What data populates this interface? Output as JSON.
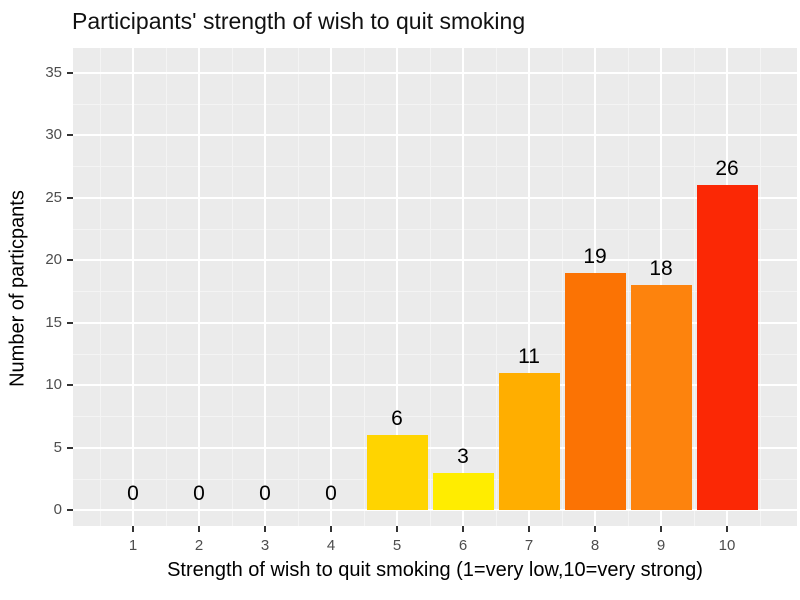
{
  "title": "Participants' strength of wish to quit smoking",
  "axes": {
    "x_title": "Strength of wish to quit smoking (1=very low,10=very strong)",
    "y_title": "Number of particpants"
  },
  "chart_data": {
    "type": "bar",
    "title": "Participants' strength of wish to quit smoking",
    "xlabel": "Strength of wish to quit smoking (1=very low,10=very strong)",
    "ylabel": "Number of particpants",
    "categories": [
      "1",
      "2",
      "3",
      "4",
      "5",
      "6",
      "7",
      "8",
      "9",
      "10"
    ],
    "values": [
      0,
      0,
      0,
      0,
      6,
      3,
      11,
      19,
      18,
      26
    ],
    "bar_labels": [
      "0",
      "0",
      "0",
      "0",
      "6",
      "3",
      "11",
      "19",
      "18",
      "26"
    ],
    "bar_colors": [
      null,
      null,
      null,
      null,
      "#FFD400",
      "#FFED00",
      "#FFAE00",
      "#FB7304",
      "#FD830D",
      "#FB2805"
    ],
    "yticks": [
      0,
      5,
      10,
      15,
      20,
      25,
      30,
      35
    ],
    "ylim": [
      0,
      37
    ],
    "grid": "on",
    "legend": "none",
    "style": {
      "panel_bg": "#EBEBEB",
      "grid_major_color": "#FFFFFF",
      "grid_minor_color": "#F4F4F4",
      "tick_label_color": "#4D4D4D",
      "tick_mark_color": "#333333",
      "label_text_color": "#000000"
    }
  }
}
